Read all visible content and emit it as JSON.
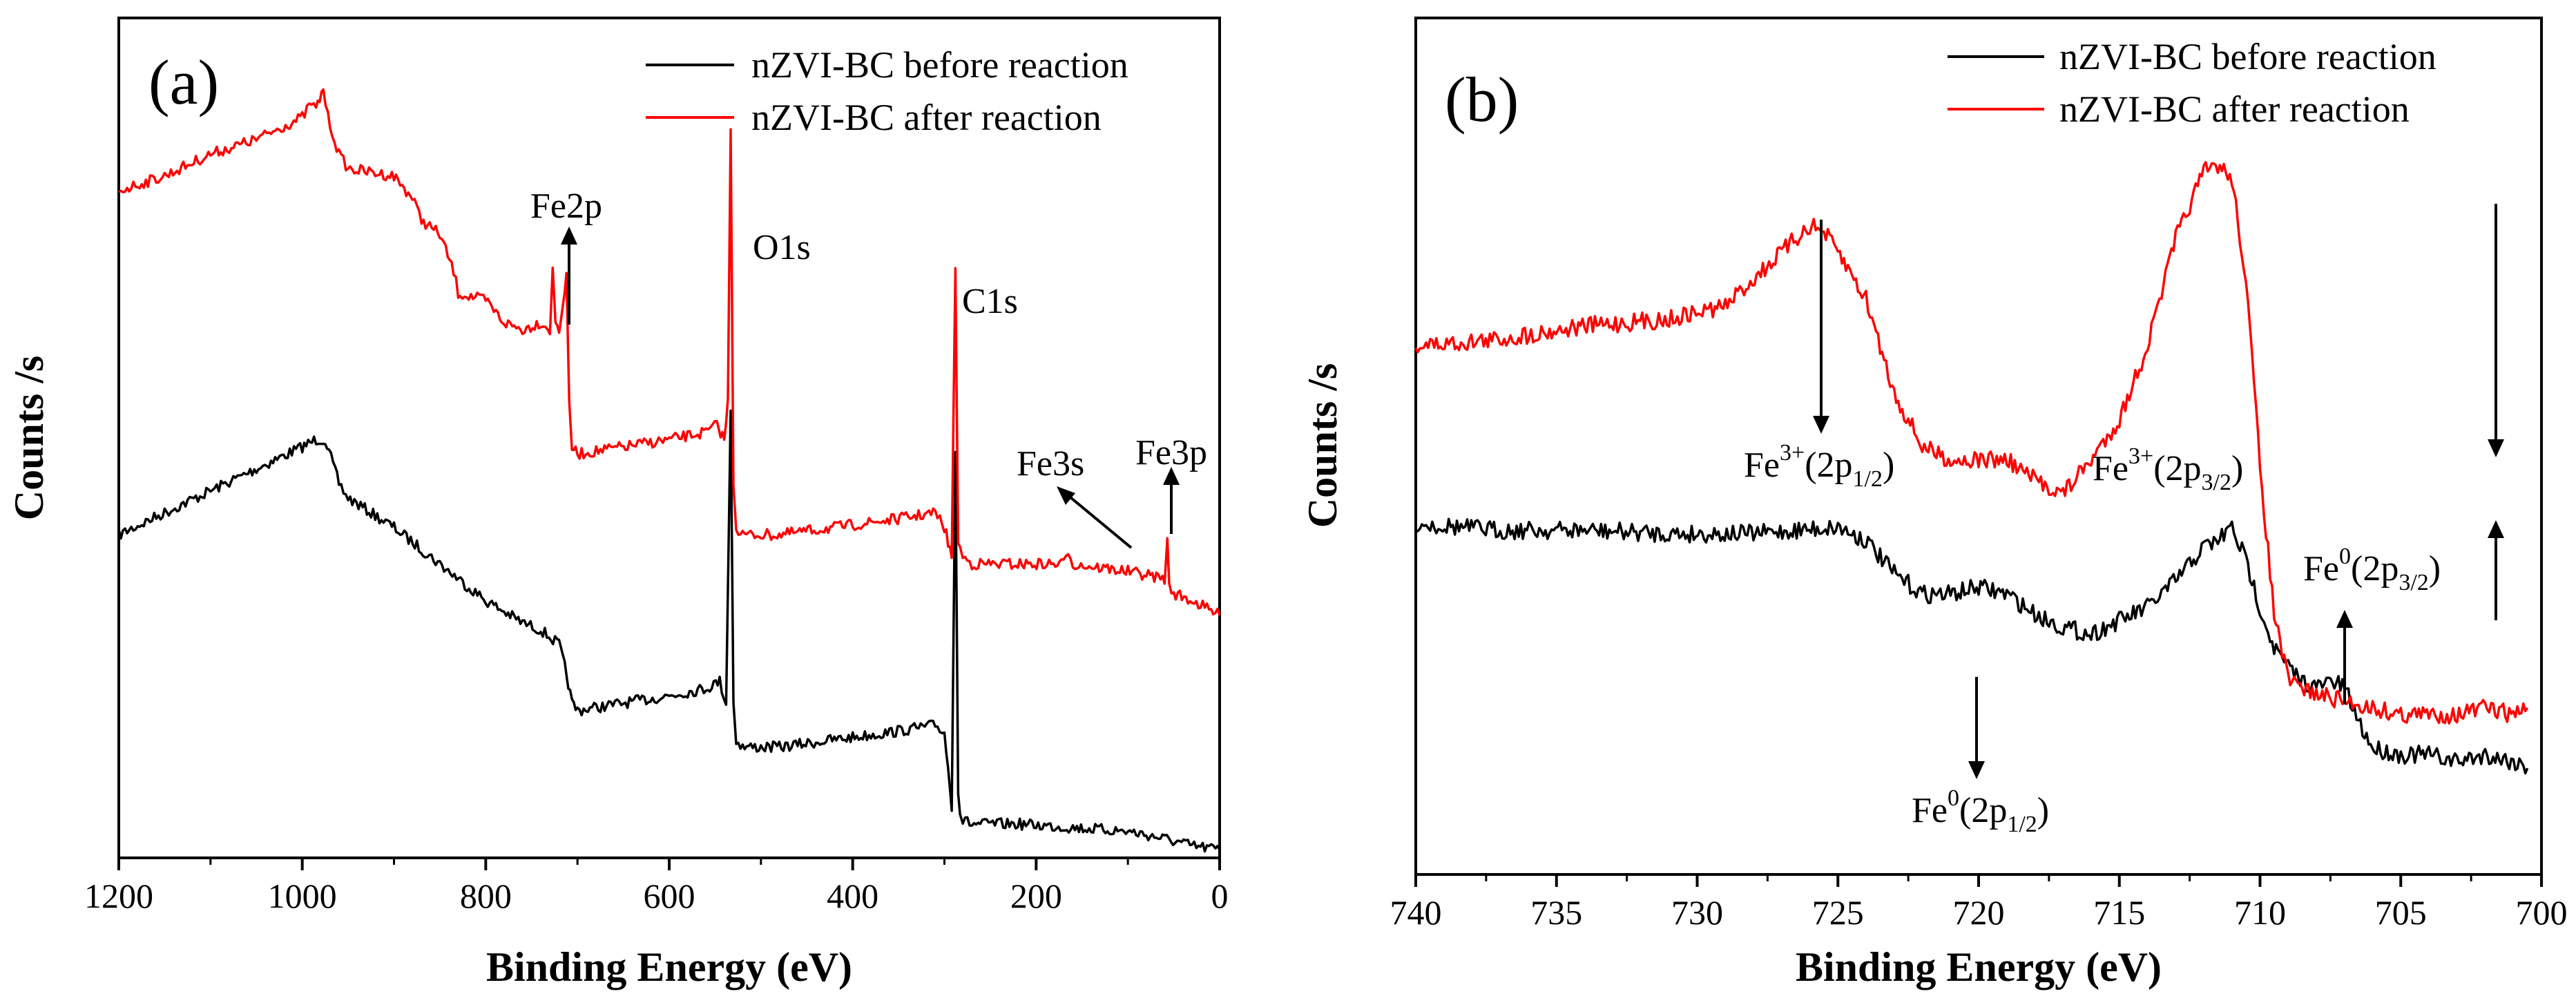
{
  "chart_data": [
    {
      "type": "line",
      "panel_label": "(a)",
      "xlabel": "Binding Energy (eV)",
      "ylabel": "Counts /s",
      "xlim": [
        1200,
        0
      ],
      "x_reversed": true,
      "ylim": [
        0,
        1
      ],
      "y_ticks_shown": false,
      "x_ticks": [
        1200,
        1000,
        800,
        600,
        400,
        200,
        0
      ],
      "legend_position": "top-right",
      "series": [
        {
          "name": "nZVI-BC before reaction",
          "color": "#000000",
          "x": [
            1200,
            1150,
            1100,
            1050,
            1000,
            985,
            975,
            960,
            950,
            900,
            850,
            800,
            760,
            740,
            720,
            712,
            706,
            700,
            650,
            600,
            560,
            545,
            538,
            533,
            530,
            527,
            520,
            480,
            420,
            360,
            310,
            300,
            292,
            288,
            285,
            283,
            280,
            270,
            220,
            160,
            100,
            60,
            30,
            0
          ],
          "y": [
            0.43,
            0.46,
            0.49,
            0.52,
            0.55,
            0.56,
            0.56,
            0.5,
            0.48,
            0.44,
            0.39,
            0.34,
            0.31,
            0.3,
            0.28,
            0.24,
            0.2,
            0.19,
            0.2,
            0.21,
            0.22,
            0.23,
            0.2,
            0.6,
            0.2,
            0.15,
            0.14,
            0.14,
            0.15,
            0.16,
            0.17,
            0.16,
            0.06,
            0.55,
            0.08,
            0.05,
            0.04,
            0.035,
            0.035,
            0.03,
            0.025,
            0.015,
            0.005,
            0.0
          ]
        },
        {
          "name": "nZVI-BC after reaction",
          "color": "#ff0000",
          "x": [
            1200,
            1150,
            1100,
            1050,
            1000,
            990,
            985,
            977,
            972,
            960,
            950,
            900,
            880,
            870,
            850,
            835,
            830,
            800,
            780,
            760,
            740,
            730,
            727,
            724,
            720,
            712,
            709,
            706,
            700,
            650,
            600,
            560,
            548,
            540,
            536,
            533,
            530,
            527,
            520,
            480,
            420,
            360,
            310,
            300,
            292,
            288,
            285,
            283,
            280,
            270,
            220,
            170,
            165,
            160,
            100,
            60,
            57,
            55,
            50,
            30,
            0
          ],
          "y": [
            0.9,
            0.92,
            0.95,
            0.97,
            1.0,
            1.02,
            1.01,
            1.04,
            1.0,
            0.95,
            0.93,
            0.92,
            0.89,
            0.86,
            0.84,
            0.79,
            0.76,
            0.75,
            0.72,
            0.71,
            0.72,
            0.71,
            0.79,
            0.72,
            0.71,
            0.78,
            0.61,
            0.55,
            0.54,
            0.55,
            0.56,
            0.57,
            0.58,
            0.56,
            0.61,
            0.99,
            0.5,
            0.44,
            0.43,
            0.43,
            0.44,
            0.45,
            0.46,
            0.44,
            0.4,
            0.8,
            0.42,
            0.41,
            0.4,
            0.39,
            0.39,
            0.39,
            0.41,
            0.39,
            0.38,
            0.37,
            0.42,
            0.36,
            0.35,
            0.34,
            0.32
          ]
        }
      ],
      "annotations": [
        {
          "text": "Fe2p",
          "direction": "up",
          "x": 715
        },
        {
          "text": "O1s",
          "x": 490
        },
        {
          "text": "C1s",
          "x": 260
        },
        {
          "text": "Fe3s",
          "direction": "diagonal",
          "x": 100
        },
        {
          "text": "Fe3p",
          "direction": "up",
          "x": 53
        }
      ]
    },
    {
      "type": "line",
      "panel_label": "(b)",
      "xlabel": "Binding Energy (eV)",
      "ylabel": "Counts /s",
      "xlim": [
        740,
        700
      ],
      "x_reversed": true,
      "ylim": [
        0,
        1
      ],
      "y_ticks_shown": false,
      "x_ticks": [
        740,
        735,
        730,
        725,
        720,
        715,
        710,
        705,
        700
      ],
      "legend_position": "top-right",
      "series": [
        {
          "name": "nZVI-BC before reaction",
          "color": "#000000",
          "x": [
            740,
            737,
            734,
            731,
            728,
            725,
            724,
            723,
            722,
            721,
            720,
            719,
            718,
            717,
            716,
            715,
            714,
            713,
            712,
            711.5,
            711,
            710.5,
            710,
            709.5,
            709,
            708.5,
            708,
            707.5,
            707,
            706.5,
            706,
            705,
            704,
            703,
            702,
            701,
            700.5
          ],
          "y": [
            0.435,
            0.425,
            0.425,
            0.42,
            0.42,
            0.43,
            0.41,
            0.36,
            0.33,
            0.33,
            0.34,
            0.33,
            0.3,
            0.28,
            0.27,
            0.29,
            0.31,
            0.35,
            0.4,
            0.41,
            0.43,
            0.38,
            0.31,
            0.25,
            0.22,
            0.2,
            0.19,
            0.2,
            0.19,
            0.14,
            0.1,
            0.09,
            0.09,
            0.08,
            0.09,
            0.08,
            0.07
          ]
        },
        {
          "name": "nZVI-BC after reaction",
          "color": "#ff0000",
          "x": [
            740,
            737,
            734,
            731,
            729,
            727,
            726,
            725.5,
            725,
            724,
            723,
            722,
            721,
            720,
            719,
            718,
            717,
            716,
            715,
            714,
            713,
            712.5,
            712,
            711.5,
            711,
            710.5,
            710,
            709.5,
            709,
            708,
            707,
            706,
            705,
            704,
            703,
            702,
            701,
            700.5
          ],
          "y": [
            0.7,
            0.71,
            0.73,
            0.74,
            0.76,
            0.84,
            0.88,
            0.87,
            0.84,
            0.77,
            0.63,
            0.55,
            0.53,
            0.53,
            0.53,
            0.5,
            0.48,
            0.53,
            0.59,
            0.7,
            0.86,
            0.91,
            0.96,
            0.97,
            0.95,
            0.8,
            0.52,
            0.3,
            0.2,
            0.18,
            0.17,
            0.16,
            0.15,
            0.15,
            0.15,
            0.16,
            0.15,
            0.16
          ]
        }
      ],
      "annotations": [
        {
          "text": "Fe",
          "sup": "3+",
          "open": "(2p",
          "sub": "1/2",
          "close": ")",
          "direction": "down",
          "x": 725.8
        },
        {
          "text": "Fe",
          "sup": "3+",
          "open": "(2p",
          "sub": "3/2",
          "close": ")",
          "direction": "down",
          "x": 711.6
        },
        {
          "text": "Fe",
          "sup": "0",
          "open": "(2p",
          "sub": "1/2",
          "close": ")",
          "direction": "down",
          "x": 720.1
        },
        {
          "text": "Fe",
          "sup": "0",
          "open": "(2p",
          "sub": "3/2",
          "close": ")",
          "direction": "up",
          "x": 707.0
        },
        {
          "direction": "up",
          "x": 711.6
        }
      ]
    }
  ]
}
